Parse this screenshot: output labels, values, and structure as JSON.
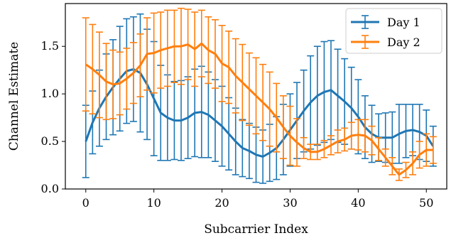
{
  "chart_data": {
    "type": "line",
    "error_bars": true,
    "xlabel": "Subcarrier Index",
    "ylabel": "Channel Estimate",
    "xlim": [
      -3,
      53
    ],
    "ylim": [
      0,
      1.95
    ],
    "xticks": [
      0,
      10,
      20,
      30,
      40,
      50
    ],
    "yticks": [
      0.0,
      0.5,
      1.0,
      1.5
    ],
    "ytick_labels": [
      "0.0",
      "0.5",
      "1.0",
      "1.5"
    ],
    "grid": false,
    "legend_position": "top-right",
    "x": [
      0,
      1,
      2,
      3,
      4,
      5,
      6,
      7,
      8,
      9,
      10,
      11,
      12,
      13,
      14,
      15,
      16,
      17,
      18,
      19,
      20,
      21,
      22,
      23,
      24,
      25,
      26,
      27,
      28,
      29,
      30,
      31,
      32,
      33,
      34,
      35,
      36,
      37,
      38,
      39,
      40,
      41,
      42,
      43,
      44,
      45,
      46,
      47,
      48,
      49,
      50,
      51
    ],
    "series": [
      {
        "name": "Day 1",
        "color": "#1f77b4",
        "values": [
          0.5,
          0.7,
          0.85,
          0.97,
          1.07,
          1.16,
          1.24,
          1.26,
          1.22,
          1.1,
          0.95,
          0.8,
          0.75,
          0.72,
          0.72,
          0.75,
          0.8,
          0.81,
          0.78,
          0.72,
          0.66,
          0.58,
          0.5,
          0.43,
          0.4,
          0.36,
          0.34,
          0.38,
          0.43,
          0.52,
          0.62,
          0.72,
          0.82,
          0.91,
          0.98,
          1.02,
          1.04,
          0.98,
          0.92,
          0.85,
          0.76,
          0.65,
          0.58,
          0.54,
          0.54,
          0.54,
          0.58,
          0.61,
          0.62,
          0.6,
          0.56,
          0.45
        ],
        "errors": [
          0.38,
          0.33,
          0.4,
          0.45,
          0.5,
          0.55,
          0.55,
          0.55,
          0.62,
          0.58,
          0.6,
          0.5,
          0.45,
          0.41,
          0.42,
          0.43,
          0.46,
          0.48,
          0.45,
          0.43,
          0.42,
          0.38,
          0.35,
          0.3,
          0.29,
          0.29,
          0.28,
          0.3,
          0.33,
          0.37,
          0.38,
          0.4,
          0.43,
          0.49,
          0.52,
          0.53,
          0.52,
          0.49,
          0.45,
          0.43,
          0.39,
          0.33,
          0.3,
          0.25,
          0.26,
          0.27,
          0.31,
          0.28,
          0.27,
          0.29,
          0.27,
          0.21
        ]
      },
      {
        "name": "Day 2",
        "color": "#ff7f0e",
        "values": [
          1.31,
          1.26,
          1.2,
          1.13,
          1.1,
          1.11,
          1.16,
          1.22,
          1.3,
          1.42,
          1.43,
          1.46,
          1.48,
          1.5,
          1.5,
          1.52,
          1.47,
          1.53,
          1.46,
          1.42,
          1.32,
          1.28,
          1.19,
          1.12,
          1.05,
          0.98,
          0.91,
          0.84,
          0.75,
          0.65,
          0.56,
          0.49,
          0.43,
          0.39,
          0.39,
          0.42,
          0.46,
          0.5,
          0.52,
          0.56,
          0.57,
          0.56,
          0.51,
          0.42,
          0.33,
          0.24,
          0.15,
          0.2,
          0.27,
          0.36,
          0.41,
          0.41
        ]
      }
    ],
    "day2_errors": [
      0.49,
      0.47,
      0.45,
      0.4,
      0.36,
      0.33,
      0.32,
      0.32,
      0.33,
      0.38,
      0.42,
      0.4,
      0.4,
      0.38,
      0.4,
      0.37,
      0.39,
      0.35,
      0.35,
      0.36,
      0.4,
      0.38,
      0.39,
      0.4,
      0.38,
      0.4,
      0.4,
      0.39,
      0.36,
      0.33,
      0.31,
      0.25,
      0.11,
      0.08,
      0.08,
      0.09,
      0.1,
      0.12,
      0.12,
      0.14,
      0.16,
      0.17,
      0.15,
      0.12,
      0.09,
      0.09,
      0.06,
      0.08,
      0.12,
      0.14,
      0.17,
      0.14
    ]
  }
}
